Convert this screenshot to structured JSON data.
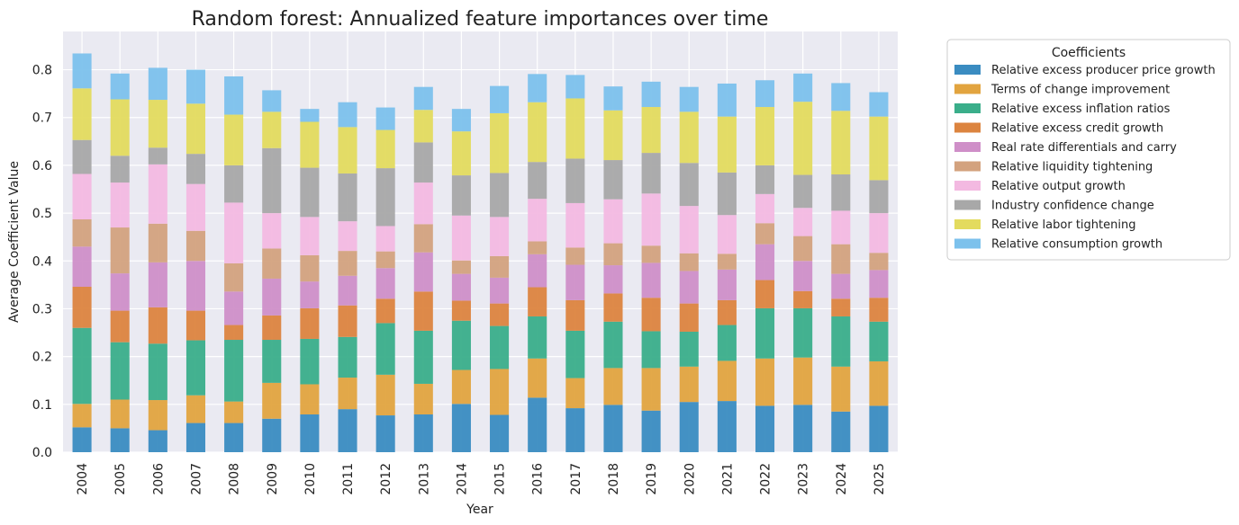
{
  "chart_data": {
    "type": "bar",
    "stacked": true,
    "title": "Random forest: Annualized feature importances over time",
    "xlabel": "Year",
    "ylabel": "Average Coefficient Value",
    "ylim": [
      0,
      0.88
    ],
    "yticks": [
      0.0,
      0.1,
      0.2,
      0.3,
      0.4,
      0.5,
      0.6,
      0.7,
      0.8
    ],
    "grid": true,
    "legend_title": "Coefficients",
    "legend_position": "outside-right",
    "categories": [
      "2004",
      "2005",
      "2006",
      "2007",
      "2008",
      "2009",
      "2010",
      "2011",
      "2012",
      "2013",
      "2014",
      "2015",
      "2016",
      "2017",
      "2018",
      "2019",
      "2020",
      "2021",
      "2022",
      "2023",
      "2024",
      "2025"
    ],
    "series": [
      {
        "name": "Relative excess producer price growth",
        "color": "#3a8cc1",
        "values": [
          0.052,
          0.05,
          0.046,
          0.061,
          0.061,
          0.07,
          0.079,
          0.09,
          0.077,
          0.079,
          0.101,
          0.078,
          0.114,
          0.092,
          0.099,
          0.087,
          0.105,
          0.107,
          0.097,
          0.099,
          0.085,
          0.097
        ]
      },
      {
        "name": "Terms of change improvement",
        "color": "#e2a43f",
        "values": [
          0.049,
          0.06,
          0.063,
          0.058,
          0.045,
          0.075,
          0.063,
          0.066,
          0.085,
          0.064,
          0.071,
          0.096,
          0.082,
          0.063,
          0.077,
          0.089,
          0.074,
          0.084,
          0.099,
          0.099,
          0.094,
          0.093
        ]
      },
      {
        "name": "Relative excess inflation ratios",
        "color": "#3aae8a",
        "values": [
          0.159,
          0.12,
          0.118,
          0.115,
          0.129,
          0.09,
          0.095,
          0.085,
          0.108,
          0.111,
          0.103,
          0.09,
          0.088,
          0.099,
          0.097,
          0.077,
          0.073,
          0.075,
          0.105,
          0.103,
          0.105,
          0.083
        ]
      },
      {
        "name": "Relative excess credit growth",
        "color": "#dc843f",
        "values": [
          0.086,
          0.066,
          0.076,
          0.062,
          0.031,
          0.051,
          0.064,
          0.066,
          0.051,
          0.082,
          0.042,
          0.047,
          0.061,
          0.064,
          0.059,
          0.07,
          0.059,
          0.052,
          0.059,
          0.036,
          0.037,
          0.05
        ]
      },
      {
        "name": "Real rate differentials and carry",
        "color": "#cf8fc8",
        "values": [
          0.084,
          0.078,
          0.094,
          0.104,
          0.07,
          0.077,
          0.056,
          0.062,
          0.064,
          0.082,
          0.056,
          0.054,
          0.069,
          0.074,
          0.059,
          0.073,
          0.068,
          0.064,
          0.075,
          0.063,
          0.052,
          0.058
        ]
      },
      {
        "name": "Relative liquidity tightening",
        "color": "#d3a27e",
        "values": [
          0.057,
          0.096,
          0.081,
          0.063,
          0.059,
          0.063,
          0.055,
          0.052,
          0.035,
          0.059,
          0.028,
          0.045,
          0.027,
          0.036,
          0.046,
          0.036,
          0.037,
          0.033,
          0.044,
          0.052,
          0.062,
          0.036
        ]
      },
      {
        "name": "Relative output growth",
        "color": "#f3b9e1",
        "values": [
          0.095,
          0.094,
          0.124,
          0.098,
          0.127,
          0.074,
          0.08,
          0.062,
          0.053,
          0.087,
          0.094,
          0.082,
          0.089,
          0.093,
          0.092,
          0.109,
          0.099,
          0.081,
          0.061,
          0.059,
          0.07,
          0.083
        ]
      },
      {
        "name": "Industry confidence change",
        "color": "#a8a8a8",
        "values": [
          0.071,
          0.056,
          0.035,
          0.063,
          0.078,
          0.136,
          0.103,
          0.1,
          0.121,
          0.084,
          0.084,
          0.092,
          0.077,
          0.093,
          0.082,
          0.085,
          0.09,
          0.089,
          0.06,
          0.069,
          0.076,
          0.069
        ]
      },
      {
        "name": "Relative labor tightening",
        "color": "#e3db5e",
        "values": [
          0.108,
          0.118,
          0.1,
          0.105,
          0.106,
          0.076,
          0.096,
          0.097,
          0.08,
          0.068,
          0.092,
          0.125,
          0.125,
          0.126,
          0.104,
          0.096,
          0.107,
          0.117,
          0.122,
          0.153,
          0.133,
          0.133
        ]
      },
      {
        "name": "Relative consumption growth",
        "color": "#7cc1ec",
        "values": [
          0.073,
          0.054,
          0.067,
          0.071,
          0.08,
          0.045,
          0.027,
          0.052,
          0.047,
          0.048,
          0.047,
          0.057,
          0.059,
          0.049,
          0.05,
          0.053,
          0.052,
          0.069,
          0.056,
          0.059,
          0.058,
          0.051
        ]
      }
    ]
  },
  "colors": {
    "plot_background": "#eaeaf2",
    "grid": "#ffffff",
    "legend_border": "#cccccc"
  }
}
